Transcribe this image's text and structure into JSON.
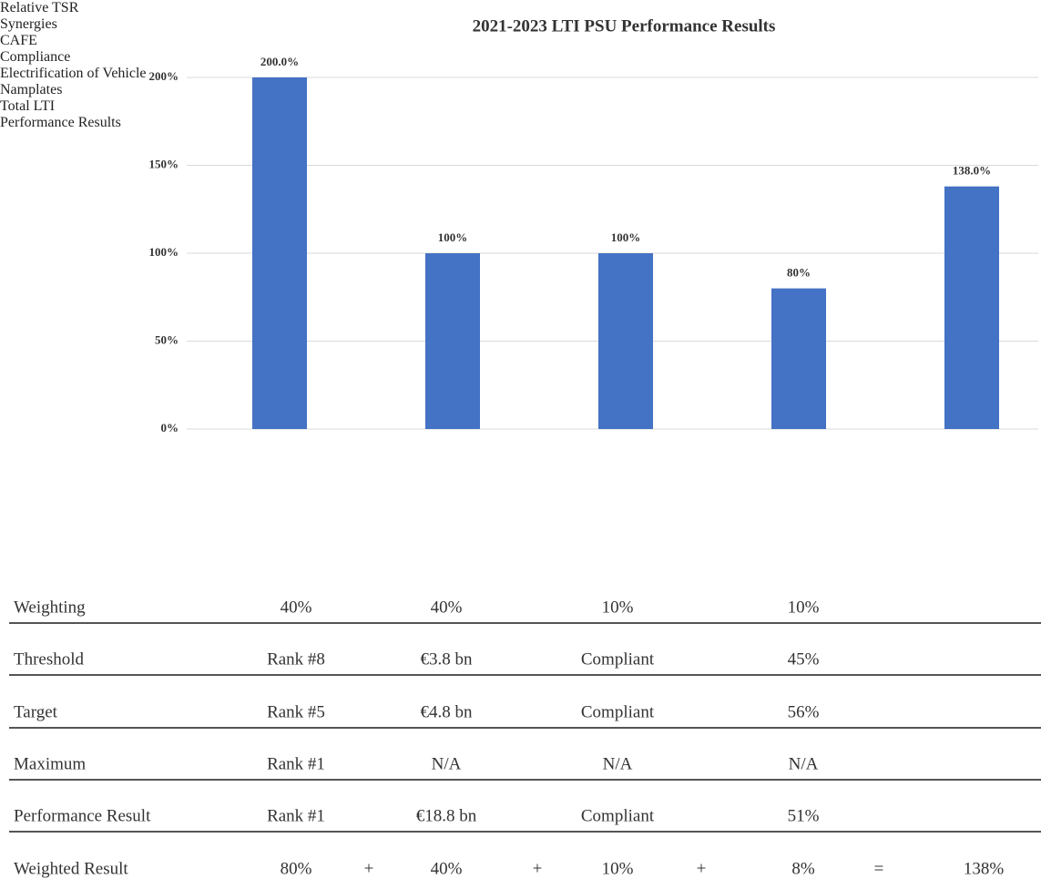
{
  "chart_data": {
    "type": "bar",
    "title": "2021-2023 LTI PSU Performance Results",
    "categories": [
      "Relative TSR",
      "Synergies",
      "CAFE Compliance",
      "Electrification of Vehicle Namplates",
      "Total LTI Performance Results"
    ],
    "values": [
      200,
      100,
      100,
      80,
      138
    ],
    "value_labels": [
      "200.0%",
      "100%",
      "100%",
      "80%",
      "138.0%"
    ],
    "color": "#4472c4",
    "ylim": [
      0,
      200
    ],
    "yticks": [
      {
        "value": 0,
        "label": "0%"
      },
      {
        "value": 50,
        "label": "50%"
      },
      {
        "value": 100,
        "label": "100%"
      },
      {
        "value": 150,
        "label": "150%"
      },
      {
        "value": 200,
        "label": "200%"
      }
    ],
    "grid": true
  },
  "table": {
    "rows": [
      [
        "Weighting",
        "40%",
        "40%",
        "10%",
        "10%"
      ],
      [
        "Threshold",
        "Rank #8",
        "€3.8 bn",
        "Compliant",
        "45%"
      ],
      [
        "Target",
        "Rank #5",
        "€4.8 bn",
        "Compliant",
        "56%"
      ],
      [
        "Maximum",
        "Rank #1",
        "N/A",
        "N/A",
        "N/A"
      ],
      [
        "Performance Result",
        "Rank #1",
        "€18.8 bn",
        "Compliant",
        "51%"
      ],
      [
        "Weighted Result",
        "80%",
        "+",
        "40%",
        "+",
        "10%",
        "+",
        "8%",
        "=",
        "138%"
      ]
    ]
  }
}
